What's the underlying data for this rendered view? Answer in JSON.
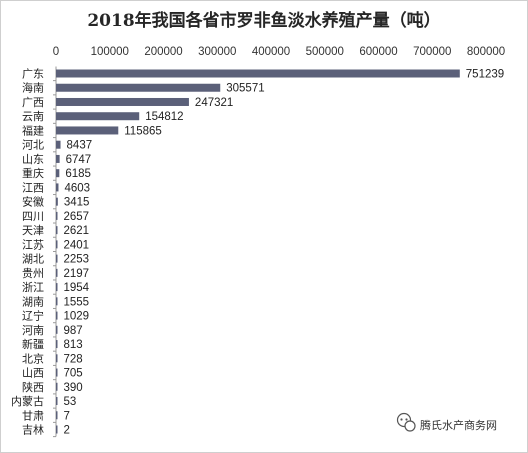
{
  "chart_data": {
    "type": "bar",
    "orientation": "horizontal",
    "title": "2018年我国各省市罗非鱼淡水养殖产量（吨）",
    "xlabel": "",
    "ylabel": "",
    "xlim": [
      0,
      800000
    ],
    "xticks": [
      "0",
      "100000",
      "200000",
      "300000",
      "400000",
      "500000",
      "600000",
      "700000",
      "800000"
    ],
    "xaxis_position": "top",
    "grid": false,
    "legend": "none",
    "bar_color": "#5b6079",
    "categories": [
      "广东",
      "海南",
      "广西",
      "云南",
      "福建",
      "河北",
      "山东",
      "重庆",
      "江西",
      "安徽",
      "四川",
      "天津",
      "江苏",
      "湖北",
      "贵州",
      "浙江",
      "湖南",
      "辽宁",
      "河南",
      "新疆",
      "北京",
      "山西",
      "陕西",
      "内蒙古",
      "甘肃",
      "吉林"
    ],
    "values": [
      751239,
      305571,
      247321,
      154812,
      115865,
      8437,
      6747,
      6185,
      4603,
      3415,
      2657,
      2621,
      2401,
      2253,
      2197,
      1954,
      1555,
      1029,
      987,
      813,
      728,
      705,
      390,
      53,
      7,
      2
    ]
  },
  "watermark": {
    "text": "腾氏水产商务网",
    "icon": "wechat-bubble-icon"
  }
}
